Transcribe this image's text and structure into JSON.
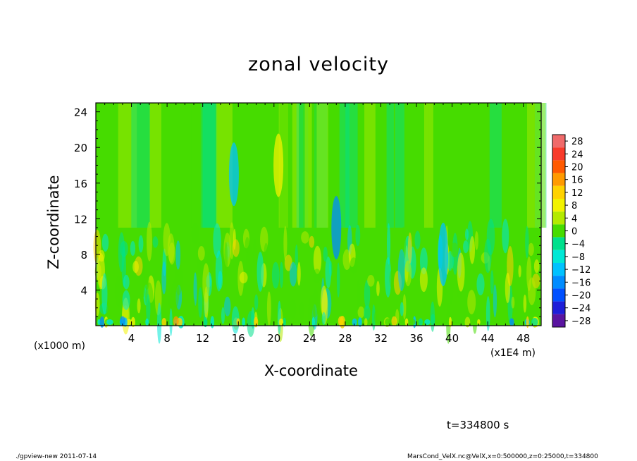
{
  "chart_data": {
    "type": "heatmap",
    "title": "zonal velocity",
    "xlabel": "X-coordinate",
    "ylabel": "Z-coordinate",
    "x_unit": "(x1E4 m)",
    "y_unit": "(x1000 m)",
    "xlim": [
      0,
      50
    ],
    "ylim": [
      0,
      25
    ],
    "x_ticks": [
      4,
      8,
      12,
      16,
      20,
      24,
      28,
      32,
      36,
      40,
      44,
      48
    ],
    "y_ticks": [
      4,
      8,
      12,
      16,
      20,
      24
    ],
    "colorbar": {
      "levels": [
        28,
        24,
        20,
        16,
        12,
        8,
        4,
        0,
        -4,
        -8,
        -12,
        -16,
        -20,
        -24,
        -28
      ],
      "labels": [
        "28",
        "24",
        "20",
        "16",
        "12",
        "8",
        "4",
        "0",
        "−4",
        "−8",
        "−12",
        "−16",
        "−20",
        "−24",
        "−28"
      ],
      "colors": [
        "#f06a6a",
        "#f83a2a",
        "#ff5a00",
        "#ff9a00",
        "#ffd200",
        "#f2f200",
        "#b4ea00",
        "#46dc00",
        "#00e08c",
        "#00e8d6",
        "#00c2ff",
        "#008cff",
        "#0050ff",
        "#1e1ed8",
        "#5a14a0"
      ]
    },
    "features": [
      {
        "x": 15.5,
        "z": 17,
        "value": -10
      },
      {
        "x": 20.5,
        "z": 18,
        "value": 9
      },
      {
        "x": 27,
        "z": 11,
        "value": -14
      },
      {
        "x": 9,
        "z": 0.5,
        "value": 17
      },
      {
        "x": 27.5,
        "z": 0.5,
        "value": 12
      },
      {
        "x": 33.5,
        "z": 0.5,
        "value": 12
      },
      {
        "x": 3,
        "z": 0.5,
        "value": -14
      },
      {
        "x": 39,
        "z": 8,
        "value": -12
      }
    ]
  },
  "time_label": "t=334800 s",
  "footer_left": "./gpview-new  2011-07-14",
  "footer_right": "MarsCond_VelX.nc@VelX,x=0:500000,z=0:25000,t=334800"
}
